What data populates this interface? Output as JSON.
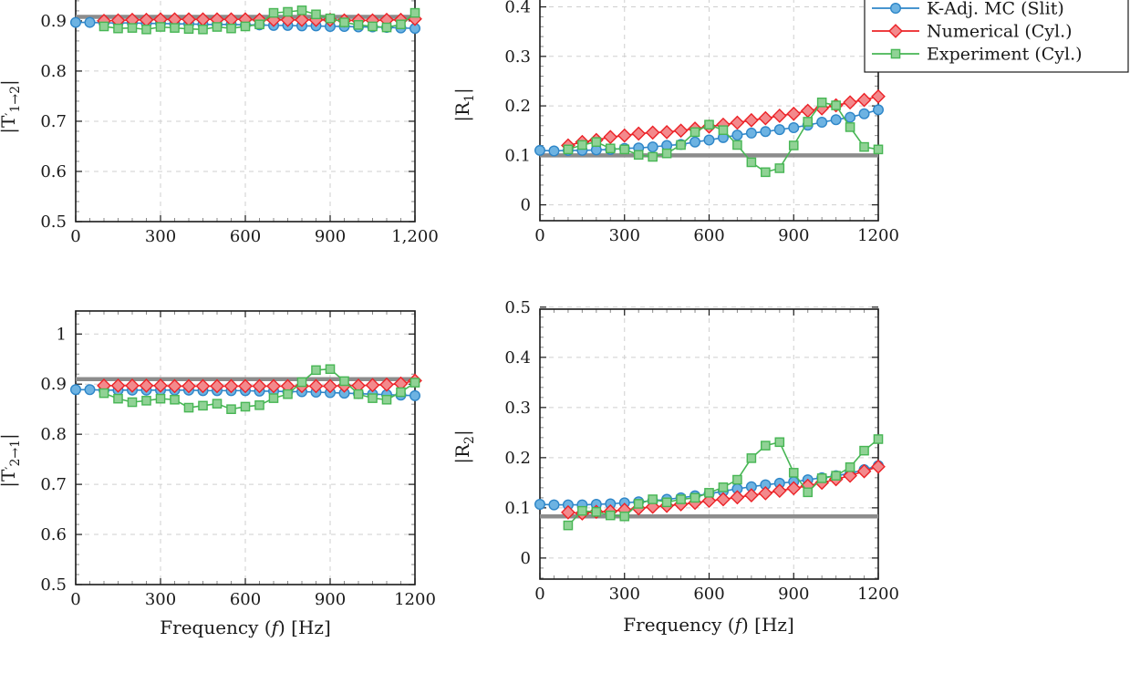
{
  "figure": {
    "background": "#ffffff",
    "axis_color": "#1a1a1a",
    "grid_color": "#cfcfcf",
    "major_tick_color": "#1a1a1a",
    "minor_tick_color": "#8a8a8a",
    "reference_line_color": "#8c8c8c"
  },
  "series_styles": {
    "k_adj_mc_slit": {
      "label": "K-Adj. MC (Slit)",
      "marker": "circle",
      "stroke": "#2e86c8",
      "fill": "#6db3e2"
    },
    "numerical_cyl": {
      "label": "Numerical (Cyl.)",
      "marker": "diamond",
      "stroke": "#ec2227",
      "fill": "#f3898c"
    },
    "experiment_cyl": {
      "label": "Experiment (Cyl.)",
      "marker": "square",
      "stroke": "#47b654",
      "fill": "#90d295"
    }
  },
  "legend": {
    "entries": [
      "k_adj_mc_slit",
      "numerical_cyl",
      "experiment_cyl"
    ]
  },
  "xlabel_parts": [
    {
      "t": "Frequency ("
    },
    {
      "t": "f",
      "italic": true
    },
    {
      "t": ") [Hz]"
    }
  ],
  "x": [
    0,
    50,
    100,
    150,
    200,
    250,
    300,
    350,
    400,
    450,
    500,
    550,
    600,
    650,
    700,
    750,
    800,
    850,
    900,
    950,
    1000,
    1050,
    1100,
    1150,
    1200
  ],
  "chart_data": [
    {
      "id": "T12",
      "type": "line",
      "ylabel_parts": [
        {
          "t": "|T"
        },
        {
          "t": "′",
          "sup": true
        },
        {
          "t": "1→2",
          "sub": true
        },
        {
          "t": "|"
        }
      ],
      "has_xlabel": false,
      "xlim": [
        0,
        1200
      ],
      "ylim": [
        0.5,
        0.958
      ],
      "xtick_values": [
        0,
        300,
        600,
        900,
        1200
      ],
      "xtick_labels": [
        "0",
        "300",
        "600",
        "900",
        "1,200"
      ],
      "ytick_values": [
        0.5,
        0.6,
        0.7,
        0.8,
        0.9
      ],
      "ytick_labels": [
        "0.5",
        "0.6",
        "0.7",
        "0.8",
        "0.9"
      ],
      "minor_x_step": 50,
      "minor_y_step": 0.02,
      "reference_y": 0.908,
      "series": [
        {
          "style": "k_adj_mc_slit",
          "values": [
            0.897,
            0.897,
            0.896,
            0.896,
            0.896,
            0.895,
            0.895,
            0.894,
            0.894,
            0.893,
            0.893,
            0.893,
            0.892,
            0.892,
            0.891,
            0.891,
            0.89,
            0.89,
            0.889,
            0.889,
            0.888,
            0.888,
            0.887,
            0.886,
            0.885
          ]
        },
        {
          "style": "numerical_cyl",
          "values": [
            null,
            null,
            0.9,
            0.901,
            0.902,
            0.902,
            0.903,
            0.903,
            0.903,
            0.903,
            0.903,
            0.903,
            0.903,
            0.902,
            0.902,
            0.902,
            0.902,
            0.902,
            0.902,
            0.901,
            0.901,
            0.901,
            0.902,
            0.902,
            0.904
          ]
        },
        {
          "style": "experiment_cyl",
          "values": [
            null,
            null,
            0.889,
            0.885,
            0.886,
            0.883,
            0.888,
            0.886,
            0.884,
            0.883,
            0.888,
            0.885,
            0.889,
            0.893,
            0.916,
            0.918,
            0.921,
            0.913,
            0.905,
            0.897,
            0.892,
            0.889,
            0.887,
            0.893,
            0.916
          ]
        }
      ]
    },
    {
      "id": "R1",
      "type": "line",
      "ylabel_parts": [
        {
          "t": "|R"
        },
        {
          "t": "1",
          "sub": true
        },
        {
          "t": "|"
        }
      ],
      "has_xlabel": true,
      "xlim": [
        0,
        1200
      ],
      "ylim": [
        -0.032,
        0.436
      ],
      "xtick_values": [
        0,
        300,
        600,
        900,
        1200
      ],
      "xtick_labels": [
        "0",
        "300",
        "600",
        "900",
        "1200"
      ],
      "ytick_values": [
        0,
        0.1,
        0.2,
        0.3,
        0.4
      ],
      "ytick_labels": [
        "0",
        "0.1",
        "0.2",
        "0.3",
        "0.4"
      ],
      "minor_x_step": 50,
      "minor_y_step": 0.02,
      "reference_y": 0.1,
      "series": [
        {
          "style": "k_adj_mc_slit",
          "values": [
            0.11,
            0.109,
            0.11,
            0.11,
            0.111,
            0.112,
            0.114,
            0.115,
            0.117,
            0.12,
            0.122,
            0.127,
            0.131,
            0.136,
            0.141,
            0.145,
            0.148,
            0.152,
            0.156,
            0.161,
            0.167,
            0.172,
            0.177,
            0.184,
            0.192
          ]
        },
        {
          "style": "numerical_cyl",
          "values": [
            null,
            null,
            0.12,
            0.127,
            0.131,
            0.137,
            0.14,
            0.144,
            0.146,
            0.147,
            0.15,
            0.154,
            0.158,
            0.162,
            0.166,
            0.171,
            0.175,
            0.18,
            0.184,
            0.19,
            0.195,
            0.201,
            0.207,
            0.212,
            0.219
          ]
        },
        {
          "style": "experiment_cyl",
          "values": [
            null,
            null,
            0.112,
            0.121,
            0.127,
            0.114,
            0.112,
            0.101,
            0.097,
            0.104,
            0.121,
            0.147,
            0.162,
            0.151,
            0.121,
            0.086,
            0.066,
            0.074,
            0.12,
            0.168,
            0.207,
            0.201,
            0.157,
            0.117,
            0.112
          ]
        }
      ],
      "xlabel_visible": false
    },
    {
      "id": "T21",
      "type": "line",
      "ylabel_parts": [
        {
          "t": "|T"
        },
        {
          "t": "′",
          "sup": true
        },
        {
          "t": "2→1",
          "sub": true
        },
        {
          "t": "|"
        }
      ],
      "has_xlabel": true,
      "xlim": [
        0,
        1200
      ],
      "ylim": [
        0.5,
        1.046
      ],
      "xtick_values": [
        0,
        300,
        600,
        900,
        1200
      ],
      "xtick_labels": [
        "0",
        "300",
        "600",
        "900",
        "1200"
      ],
      "ytick_values": [
        0.5,
        0.6,
        0.7,
        0.8,
        0.9,
        1.0
      ],
      "ytick_labels": [
        "0.5",
        "0.6",
        "0.7",
        "0.8",
        "0.9",
        "1"
      ],
      "minor_x_step": 50,
      "minor_y_step": 0.02,
      "reference_y": 0.91,
      "series": [
        {
          "style": "k_adj_mc_slit",
          "values": [
            0.889,
            0.889,
            0.888,
            0.888,
            0.888,
            0.888,
            0.888,
            0.888,
            0.888,
            0.887,
            0.887,
            0.887,
            0.887,
            0.886,
            0.886,
            0.885,
            0.885,
            0.884,
            0.883,
            0.882,
            0.881,
            0.88,
            0.879,
            0.878,
            0.877
          ]
        },
        {
          "style": "numerical_cyl",
          "values": [
            null,
            null,
            0.897,
            0.897,
            0.897,
            0.897,
            0.897,
            0.896,
            0.896,
            0.896,
            0.896,
            0.896,
            0.896,
            0.896,
            0.896,
            0.896,
            0.896,
            0.896,
            0.896,
            0.897,
            0.897,
            0.898,
            0.899,
            0.901,
            0.907
          ]
        },
        {
          "style": "experiment_cyl",
          "values": [
            null,
            null,
            0.882,
            0.871,
            0.864,
            0.867,
            0.871,
            0.869,
            0.853,
            0.857,
            0.861,
            0.85,
            0.855,
            0.858,
            0.872,
            0.88,
            0.904,
            0.928,
            0.93,
            0.906,
            0.88,
            0.872,
            0.869,
            0.884,
            0.903
          ]
        }
      ]
    },
    {
      "id": "R2",
      "type": "line",
      "ylabel_parts": [
        {
          "t": "|R"
        },
        {
          "t": "2",
          "sub": true
        },
        {
          "t": "|"
        }
      ],
      "has_xlabel": true,
      "xlim": [
        0,
        1200
      ],
      "ylim": [
        -0.042,
        0.496
      ],
      "xtick_values": [
        0,
        300,
        600,
        900,
        1200
      ],
      "xtick_labels": [
        "0",
        "300",
        "600",
        "900",
        "1200"
      ],
      "ytick_values": [
        0,
        0.1,
        0.2,
        0.3,
        0.4,
        0.5
      ],
      "ytick_labels": [
        "0",
        "0.1",
        "0.2",
        "0.3",
        "0.4",
        "0.5"
      ],
      "minor_x_step": 50,
      "minor_y_step": 0.02,
      "reference_y": 0.083,
      "series": [
        {
          "style": "k_adj_mc_slit",
          "values": [
            0.107,
            0.106,
            0.106,
            0.106,
            0.107,
            0.108,
            0.11,
            0.112,
            0.114,
            0.117,
            0.12,
            0.124,
            0.128,
            0.133,
            0.138,
            0.142,
            0.146,
            0.149,
            0.152,
            0.156,
            0.16,
            0.164,
            0.169,
            0.176,
            0.184
          ]
        },
        {
          "style": "numerical_cyl",
          "values": [
            null,
            null,
            0.091,
            0.089,
            0.092,
            0.093,
            0.096,
            0.099,
            0.102,
            0.104,
            0.107,
            0.11,
            0.114,
            0.117,
            0.121,
            0.125,
            0.129,
            0.134,
            0.139,
            0.144,
            0.15,
            0.157,
            0.164,
            0.173,
            0.182
          ]
        },
        {
          "style": "experiment_cyl",
          "values": [
            null,
            null,
            0.065,
            0.094,
            0.092,
            0.085,
            0.083,
            0.108,
            0.117,
            0.111,
            0.117,
            0.12,
            0.13,
            0.141,
            0.156,
            0.199,
            0.224,
            0.231,
            0.17,
            0.131,
            0.159,
            0.164,
            0.181,
            0.214,
            0.237
          ]
        }
      ]
    }
  ]
}
